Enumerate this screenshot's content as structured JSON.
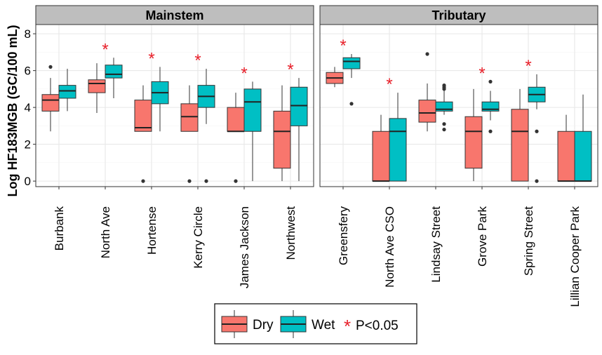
{
  "chart_data": {
    "type": "boxplot",
    "ylabel": "Log HF183MGB (GC/100 mL)",
    "ylim": [
      -0.3,
      8.5
    ],
    "yticks": [
      "0",
      "2",
      "4",
      "6",
      "8"
    ],
    "grid": true,
    "colors": {
      "Dry": "#F8766D",
      "Wet": "#00BFC4",
      "sig": "#E8202A"
    },
    "legend": {
      "position": "bottom",
      "entries": [
        "Dry",
        "Wet"
      ],
      "sig_symbol": "*",
      "sig_text": "P<0.05"
    },
    "panels": [
      {
        "name": "Mainstem",
        "categories": [
          {
            "label": "Burbank",
            "sig": false,
            "dry": {
              "whislo": 2.7,
              "q1": 3.8,
              "med": 4.4,
              "q3": 4.7,
              "whishi": 5.6,
              "outliers": [
                6.2
              ]
            },
            "wet": {
              "whislo": 3.8,
              "q1": 4.5,
              "med": 4.9,
              "q3": 5.2,
              "whishi": 6.1,
              "outliers": []
            }
          },
          {
            "label": "North Ave",
            "sig": true,
            "dry": {
              "whislo": 3.7,
              "q1": 4.8,
              "med": 5.3,
              "q3": 5.5,
              "whishi": 6.4,
              "outliers": []
            },
            "wet": {
              "whislo": 4.5,
              "q1": 5.6,
              "med": 5.8,
              "q3": 6.3,
              "whishi": 6.7,
              "outliers": []
            }
          },
          {
            "label": "Hortense",
            "sig": true,
            "dry": {
              "whislo": 2.7,
              "q1": 2.7,
              "med": 2.9,
              "q3": 4.4,
              "whishi": 5.2,
              "outliers": [
                0
              ]
            },
            "wet": {
              "whislo": 2.7,
              "q1": 4.2,
              "med": 4.8,
              "q3": 5.4,
              "whishi": 6.2,
              "outliers": []
            }
          },
          {
            "label": "Kerry Circle",
            "sig": true,
            "dry": {
              "whislo": 2.7,
              "q1": 2.7,
              "med": 3.5,
              "q3": 4.2,
              "whishi": 5.2,
              "outliers": [
                0
              ]
            },
            "wet": {
              "whislo": 3.1,
              "q1": 4.0,
              "med": 4.6,
              "q3": 5.2,
              "whishi": 6.1,
              "outliers": [
                0
              ]
            }
          },
          {
            "label": "James Jackson",
            "sig": true,
            "dry": {
              "whislo": 2.7,
              "q1": 2.7,
              "med": 2.7,
              "q3": 4.0,
              "whishi": 4.8,
              "outliers": [
                0
              ]
            },
            "wet": {
              "whislo": 0,
              "q1": 2.7,
              "med": 4.3,
              "q3": 5.0,
              "whishi": 5.4,
              "outliers": []
            }
          },
          {
            "label": "Northwest",
            "sig": true,
            "dry": {
              "whislo": 0,
              "q1": 0.7,
              "med": 2.7,
              "q3": 3.8,
              "whishi": 5.2,
              "outliers": []
            },
            "wet": {
              "whislo": 0,
              "q1": 3.0,
              "med": 4.1,
              "q3": 5.1,
              "whishi": 5.6,
              "outliers": []
            }
          }
        ]
      },
      {
        "name": "Tributary",
        "categories": [
          {
            "label": "Greensfery",
            "sig": true,
            "dry": {
              "whislo": 5.1,
              "q1": 5.3,
              "med": 5.6,
              "q3": 5.9,
              "whishi": 6.2,
              "outliers": []
            },
            "wet": {
              "whislo": 5.6,
              "q1": 6.1,
              "med": 6.5,
              "q3": 6.7,
              "whishi": 6.9,
              "outliers": [
                4.2
              ]
            }
          },
          {
            "label": "North Ave CSO",
            "sig": true,
            "dry": {
              "whislo": 0,
              "q1": 0,
              "med": 0,
              "q3": 2.7,
              "whishi": 3.6,
              "outliers": []
            },
            "wet": {
              "whislo": 0,
              "q1": 0,
              "med": 2.7,
              "q3": 3.4,
              "whishi": 4.8,
              "outliers": []
            }
          },
          {
            "label": "Lindsay Street",
            "sig": false,
            "dry": {
              "whislo": 2.7,
              "q1": 3.2,
              "med": 3.7,
              "q3": 4.4,
              "whishi": 5.3,
              "outliers": [
                6.9
              ]
            },
            "wet": {
              "whislo": 3.6,
              "q1": 3.8,
              "med": 3.9,
              "q3": 4.3,
              "whishi": 4.9,
              "outliers": [
                5.2,
                5.1,
                5.0,
                3.1,
                2.8
              ]
            }
          },
          {
            "label": "Grove Park",
            "sig": true,
            "dry": {
              "whislo": 0,
              "q1": 0.7,
              "med": 2.7,
              "q3": 3.5,
              "whishi": 5.0,
              "outliers": []
            },
            "wet": {
              "whislo": 3.3,
              "q1": 3.8,
              "med": 3.9,
              "q3": 4.3,
              "whishi": 4.9,
              "outliers": [
                5.4,
                2.7
              ]
            }
          },
          {
            "label": "Spring Street",
            "sig": true,
            "dry": {
              "whislo": 0,
              "q1": 0,
              "med": 2.7,
              "q3": 3.9,
              "whishi": 5.0,
              "outliers": []
            },
            "wet": {
              "whislo": 3.9,
              "q1": 4.3,
              "med": 4.7,
              "q3": 5.1,
              "whishi": 5.8,
              "outliers": [
                2.7,
                0
              ]
            }
          },
          {
            "label": "Lillian Cooper Park",
            "sig": false,
            "dry": {
              "whislo": 0,
              "q1": 0,
              "med": 0,
              "q3": 2.7,
              "whishi": 3.6,
              "outliers": []
            },
            "wet": {
              "whislo": 0,
              "q1": 0,
              "med": 0,
              "q3": 2.7,
              "whishi": 4.7,
              "outliers": []
            }
          }
        ]
      }
    ]
  }
}
